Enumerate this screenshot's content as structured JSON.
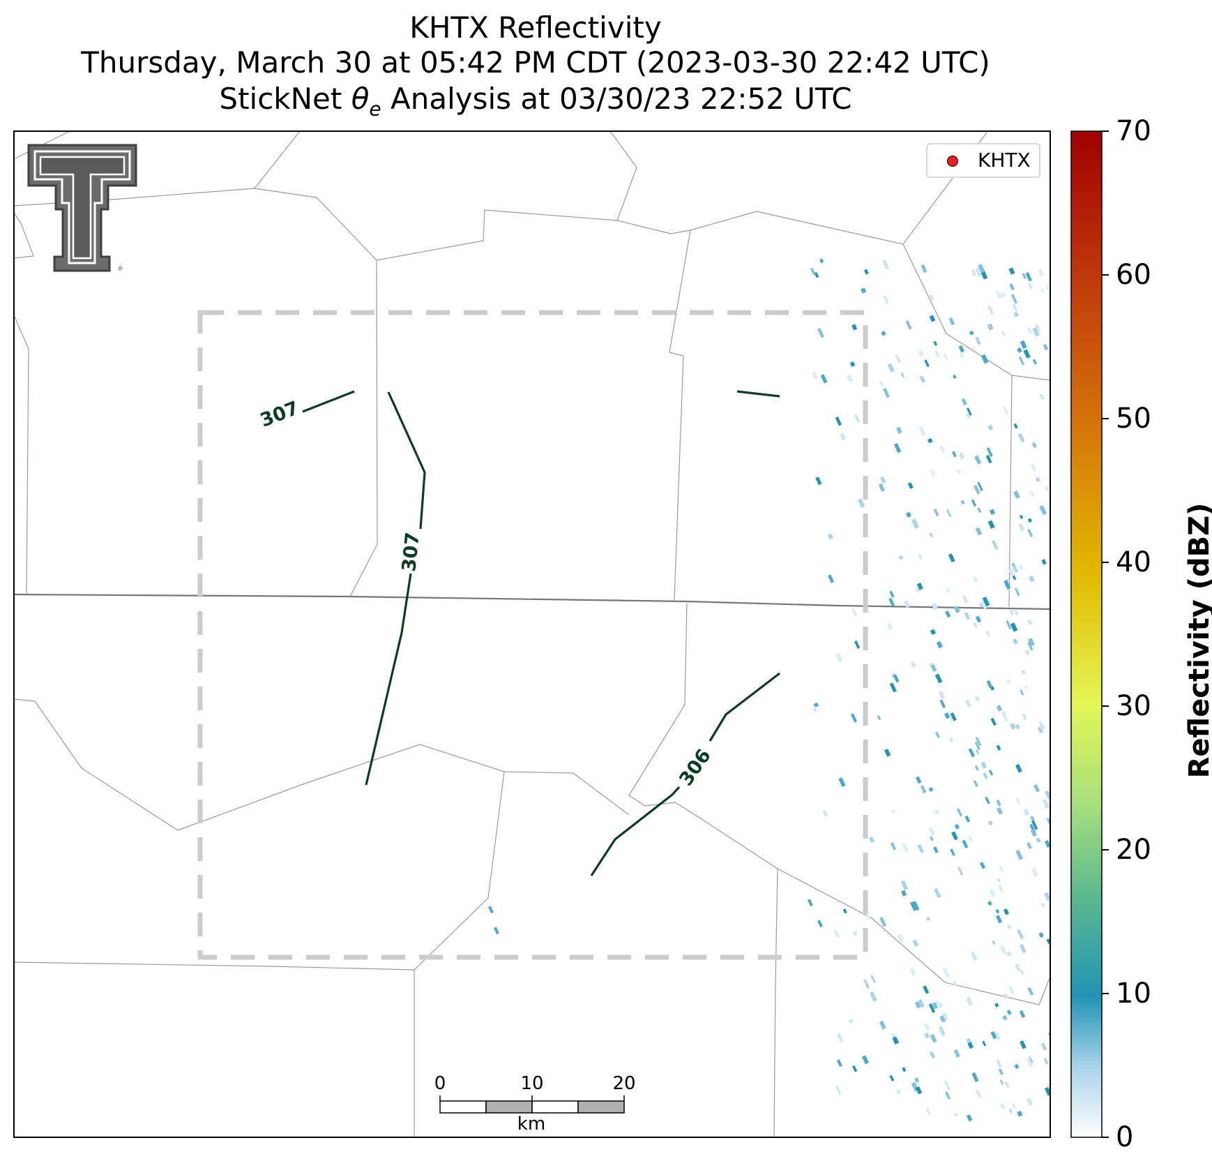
{
  "header": {
    "title_line_1": "KHTX Reflectivity",
    "title_line_2": "Thursday, March 30 at 05:42 PM CDT (2023-03-30 22:42 UTC)",
    "title_line_3": "StickNet θe Analysis at 03/30/23 22:52 UTC"
  },
  "legend": {
    "radar_label": "KHTX",
    "radar_marker_color": "#ee1c1c"
  },
  "colorbar": {
    "label": "Reflectivity (dBZ)",
    "ticks": [
      "0",
      "10",
      "20",
      "30",
      "40",
      "50",
      "60",
      "70"
    ],
    "min": 0,
    "max": 70,
    "colors": [
      "#ffffff",
      "#a9d3ea",
      "#2094b5",
      "#5cb98f",
      "#a6df7d",
      "#e4f756",
      "#e1b900",
      "#d6780a",
      "#c03a0a",
      "#a00000"
    ]
  },
  "contours": [
    {
      "label": "307"
    },
    {
      "label": "307"
    },
    {
      "label": "306"
    }
  ],
  "scale_bar": {
    "ticks": [
      "0",
      "10",
      "20"
    ],
    "unit": "km"
  },
  "logo": {
    "text": "TT"
  }
}
